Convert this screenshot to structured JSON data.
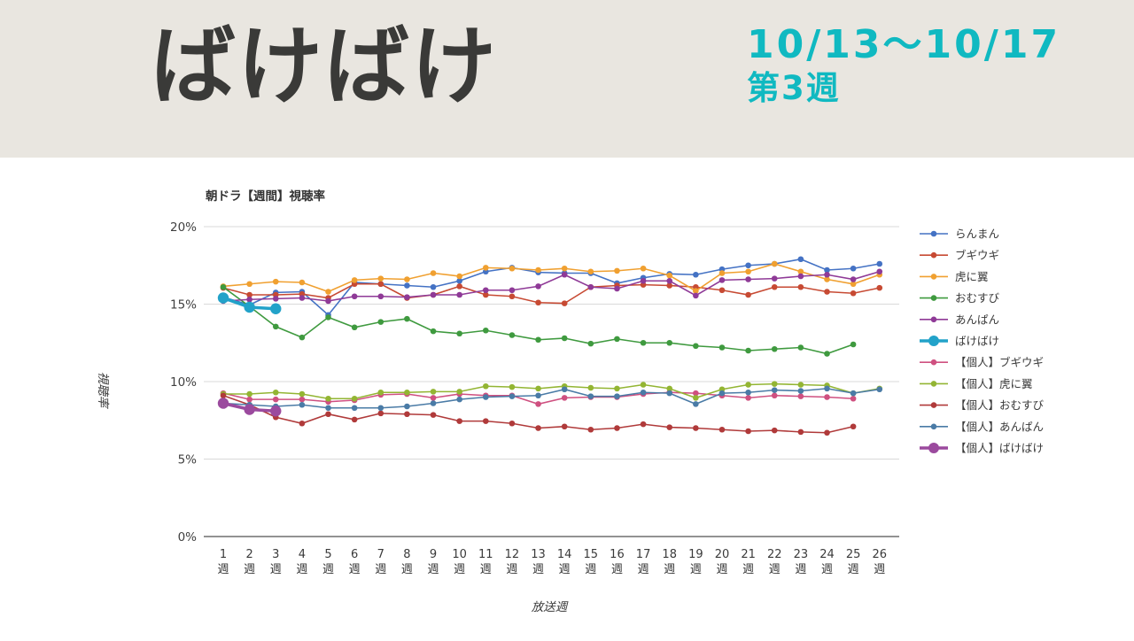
{
  "header": {
    "title": "ばけばけ",
    "date_range": "10/13～10/17",
    "week_label": "第3週",
    "accent_color": "#10b9c1",
    "background_color": "#e9e6e0"
  },
  "chart_data": {
    "type": "line",
    "title": "朝ドラ【週間】視聴率",
    "xlabel": "放送週",
    "ylabel": "視聴率",
    "x": [
      1,
      2,
      3,
      4,
      5,
      6,
      7,
      8,
      9,
      10,
      11,
      12,
      13,
      14,
      15,
      16,
      17,
      18,
      19,
      20,
      21,
      22,
      23,
      24,
      25,
      26
    ],
    "x_tick_suffix": "週",
    "ylim": [
      0,
      20
    ],
    "y_ticks": [
      0,
      5,
      10,
      15,
      20
    ],
    "y_tick_format": "percent",
    "grid": true,
    "legend_position": "right",
    "series": [
      {
        "id": "ranman",
        "name": "らんまん",
        "color": "#4472c4",
        "emphasis": false,
        "values": [
          15.45,
          14.95,
          15.75,
          15.8,
          14.3,
          16.4,
          16.3,
          16.2,
          16.1,
          16.5,
          17.1,
          17.35,
          17.05,
          17.0,
          17.0,
          16.35,
          16.7,
          16.95,
          16.9,
          17.25,
          17.5,
          17.6,
          17.9,
          17.2,
          17.3,
          17.6
        ]
      },
      {
        "id": "boogiewoogie",
        "name": "ブギウギ",
        "color": "#c74a33",
        "emphasis": false,
        "values": [
          16.05,
          15.6,
          15.6,
          15.65,
          15.4,
          16.3,
          16.3,
          15.4,
          15.6,
          16.15,
          15.6,
          15.5,
          15.1,
          15.05,
          16.1,
          16.2,
          16.25,
          16.2,
          16.1,
          15.9,
          15.6,
          16.1,
          16.1,
          15.8,
          15.7,
          16.05
        ]
      },
      {
        "id": "tora-ni-tsubasa",
        "name": "虎に翼",
        "color": "#f0a030",
        "emphasis": false,
        "values": [
          16.15,
          16.3,
          16.45,
          16.4,
          15.8,
          16.55,
          16.65,
          16.6,
          17.0,
          16.8,
          17.35,
          17.3,
          17.2,
          17.3,
          17.1,
          17.15,
          17.3,
          16.85,
          15.85,
          17.0,
          17.1,
          17.6,
          17.1,
          16.6,
          16.3,
          16.9
        ]
      },
      {
        "id": "omusubi",
        "name": "おむすび",
        "color": "#3f9a3f",
        "emphasis": false,
        "values": [
          16.1,
          14.85,
          13.55,
          12.85,
          14.15,
          13.5,
          13.85,
          14.05,
          13.25,
          13.1,
          13.3,
          13.0,
          12.7,
          12.8,
          12.45,
          12.75,
          12.5,
          12.5,
          12.3,
          12.2,
          12.0,
          12.1,
          12.2,
          11.8,
          12.4
        ]
      },
      {
        "id": "anpan",
        "name": "あんぱん",
        "color": "#8f3a97",
        "emphasis": false,
        "values": [
          15.2,
          15.3,
          15.35,
          15.4,
          15.2,
          15.5,
          15.5,
          15.45,
          15.6,
          15.6,
          15.9,
          15.9,
          16.15,
          16.9,
          16.1,
          16.0,
          16.5,
          16.5,
          15.55,
          16.55,
          16.6,
          16.65,
          16.8,
          16.9,
          16.6,
          17.1
        ]
      },
      {
        "id": "bakebake",
        "name": "ばけばけ",
        "color": "#22a2c9",
        "emphasis": true,
        "values": [
          15.4,
          14.8,
          14.7
        ]
      },
      {
        "id": "kojin-boogiewoogie",
        "name": "【個人】ブギウギ",
        "color": "#cf5080",
        "emphasis": false,
        "values": [
          9.25,
          8.85,
          8.85,
          8.85,
          8.7,
          8.8,
          9.15,
          9.2,
          8.95,
          9.2,
          9.1,
          9.1,
          8.55,
          8.95,
          9.0,
          9.0,
          9.2,
          9.3,
          9.25,
          9.1,
          8.95,
          9.1,
          9.05,
          9.0,
          8.9
        ]
      },
      {
        "id": "kojin-tora-ni-tsubasa",
        "name": "【個人】虎に翼",
        "color": "#93b533",
        "emphasis": false,
        "values": [
          9.2,
          9.2,
          9.3,
          9.2,
          8.9,
          8.9,
          9.3,
          9.3,
          9.35,
          9.35,
          9.7,
          9.65,
          9.55,
          9.7,
          9.6,
          9.55,
          9.8,
          9.55,
          8.95,
          9.5,
          9.8,
          9.85,
          9.8,
          9.75,
          9.25,
          9.55
        ]
      },
      {
        "id": "kojin-omusubi",
        "name": "【個人】おむすび",
        "color": "#b03a3a",
        "emphasis": false,
        "values": [
          9.1,
          8.5,
          7.7,
          7.3,
          7.9,
          7.55,
          7.95,
          7.9,
          7.85,
          7.45,
          7.45,
          7.3,
          7.0,
          7.1,
          6.9,
          7.0,
          7.25,
          7.05,
          7.0,
          6.9,
          6.8,
          6.85,
          6.75,
          6.7,
          7.1
        ]
      },
      {
        "id": "kojin-anpan",
        "name": "【個人】あんぱん",
        "color": "#4a7ba6",
        "emphasis": false,
        "values": [
          8.6,
          8.5,
          8.4,
          8.5,
          8.3,
          8.3,
          8.3,
          8.4,
          8.6,
          8.85,
          9.0,
          9.05,
          9.1,
          9.5,
          9.05,
          9.05,
          9.3,
          9.25,
          8.55,
          9.25,
          9.3,
          9.45,
          9.4,
          9.55,
          9.25,
          9.5
        ]
      },
      {
        "id": "kojin-bakebake",
        "name": "【個人】ばけばけ",
        "color": "#9b4a9e",
        "emphasis": true,
        "values": [
          8.6,
          8.2,
          8.1
        ]
      }
    ]
  }
}
